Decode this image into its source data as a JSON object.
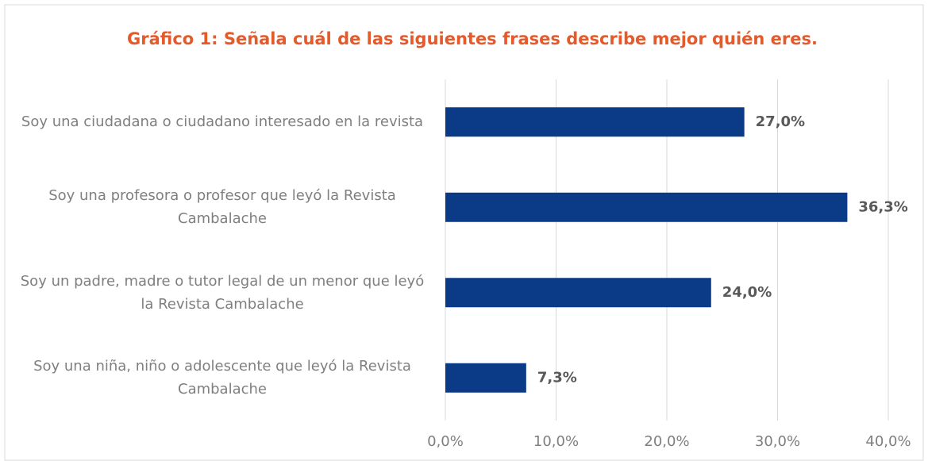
{
  "chart_data": {
    "type": "bar",
    "orientation": "horizontal",
    "title": "Gráfico 1: Señala cuál de las siguientes frases describe mejor quién eres.",
    "categories": [
      "Soy una ciudadana o ciudadano interesado en la revista",
      "Soy una profesora o profesor que leyó la Revista Cambalache",
      "Soy un padre, madre o tutor legal de un menor que leyó la Revista Cambalache",
      "Soy una niña, niño o adolescente que leyó la Revista Cambalache"
    ],
    "values": [
      27.0,
      36.3,
      24.0,
      7.3
    ],
    "value_labels": [
      "27,0%",
      "36,3%",
      "24,0%",
      "7,3%"
    ],
    "color": "#0b3a86",
    "xlim": [
      0,
      40
    ],
    "xticks": [
      {
        "value": 0,
        "label": "0,0%"
      },
      {
        "value": 10,
        "label": "10,0%"
      },
      {
        "value": 20,
        "label": "20,0%"
      },
      {
        "value": 30,
        "label": "30,0%"
      },
      {
        "value": 40,
        "label": "40,0%"
      }
    ],
    "grid": true
  }
}
